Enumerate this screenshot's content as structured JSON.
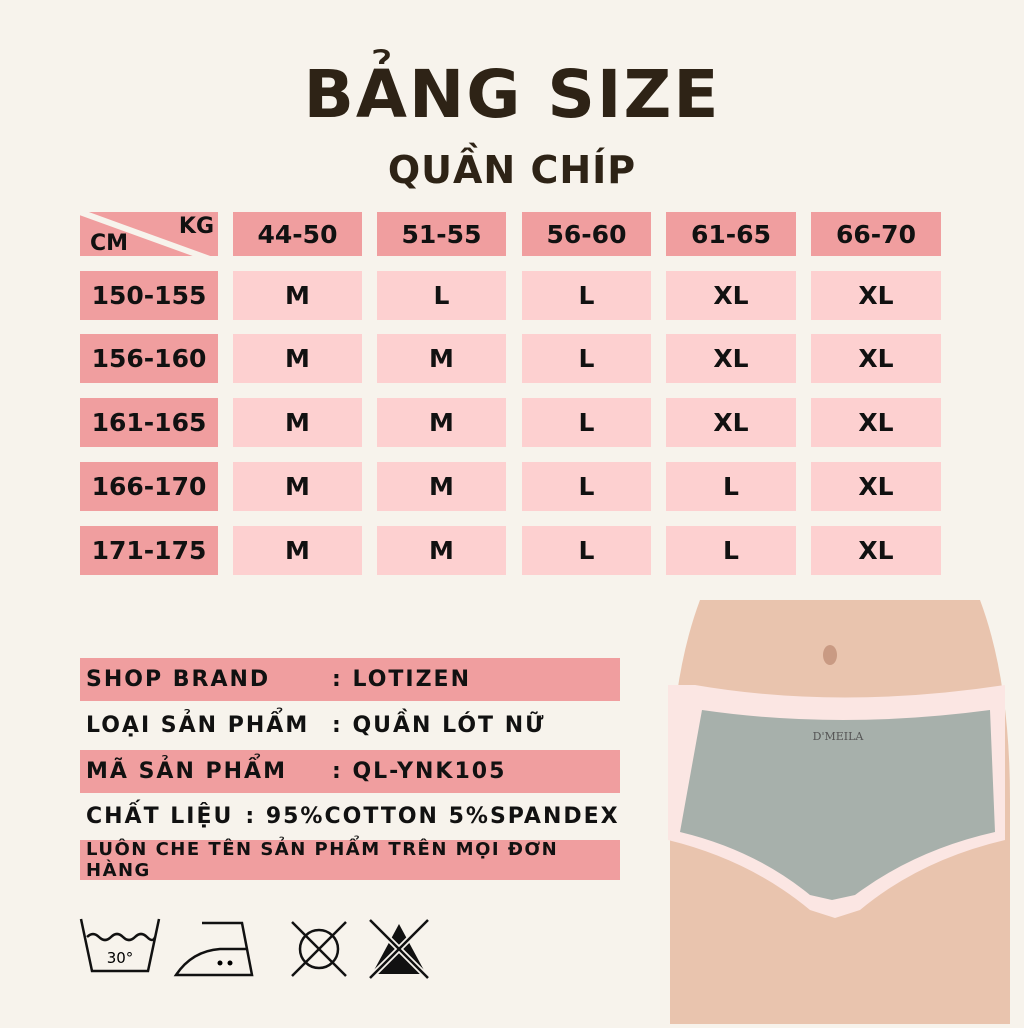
{
  "title": "BẢNG SIZE",
  "subtitle": "QUẦN CHÍP",
  "table": {
    "corner_row_label": "CM",
    "corner_col_label": "KG",
    "columns": [
      "44-50",
      "51-55",
      "56-60",
      "61-65",
      "66-70"
    ],
    "rows": [
      {
        "height": "150-155",
        "sizes": [
          "M",
          "L",
          "L",
          "XL",
          "XL"
        ]
      },
      {
        "height": "156-160",
        "sizes": [
          "M",
          "M",
          "L",
          "XL",
          "XL"
        ]
      },
      {
        "height": "161-165",
        "sizes": [
          "M",
          "M",
          "L",
          "XL",
          "XL"
        ]
      },
      {
        "height": "166-170",
        "sizes": [
          "M",
          "M",
          "L",
          "L",
          "XL"
        ]
      },
      {
        "height": "171-175",
        "sizes": [
          "M",
          "M",
          "L",
          "L",
          "XL"
        ]
      }
    ]
  },
  "info": [
    {
      "label": "SHOP BRAND",
      "value": ": LOTIZEN"
    },
    {
      "label": "LOẠI SẢN PHẨM",
      "value": ": QUẦN LÓT NỮ"
    },
    {
      "label": "MÃ SẢN PHẨM",
      "value": ": QL-YNK105"
    },
    {
      "label": "CHẤT LIỆU",
      "value": ": 95%COTTON 5%SPANDEX"
    },
    {
      "label": "LUÔN CHE TÊN SẢN PHẨM TRÊN MỌI ĐƠN HÀNG",
      "value": ""
    }
  ],
  "care": {
    "wash_temp": "30°",
    "icons": [
      "wash-30-icon",
      "iron-medium-icon",
      "no-tumble-dry-icon",
      "no-bleach-icon"
    ]
  },
  "product": {
    "brand_label": "D'MEILA"
  },
  "colors": {
    "background": "#f7f3ec",
    "header": "#f09e9f",
    "cell": "#fdd0d0",
    "title": "#2e2316"
  }
}
